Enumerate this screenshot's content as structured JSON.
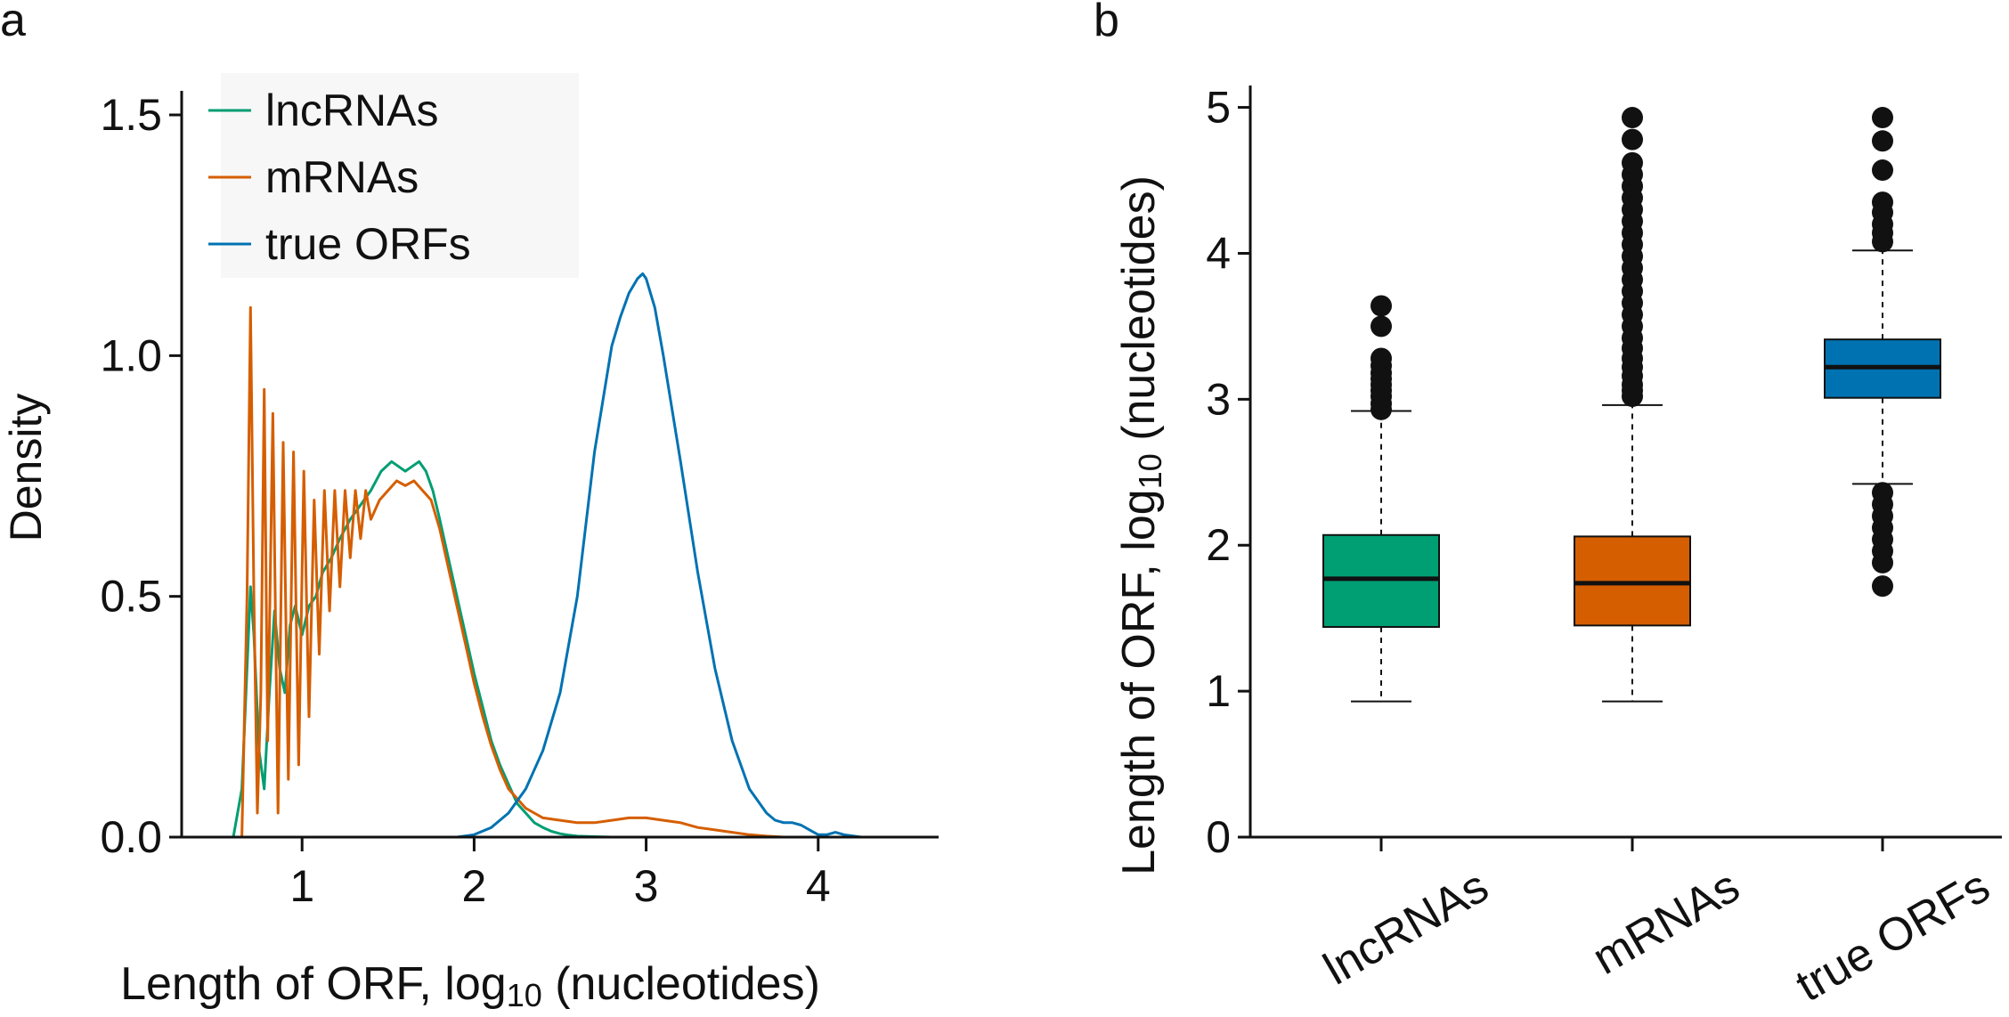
{
  "panels": {
    "a_label": "a",
    "b_label": "b"
  },
  "colors": {
    "lncRNAs": "#009e73",
    "mRNAs": "#d55e00",
    "true_ORFs": "#0072b2"
  },
  "chart_data": [
    {
      "panel": "a",
      "type": "line",
      "title": "",
      "xlabel": "Length of ORF, log10 (nucleotides)",
      "xlabel_parts": {
        "pre": "Length of ORF, log",
        "sub": "10",
        "post": " (nucleotides)"
      },
      "ylabel": "Density",
      "xlim": [
        0.3,
        4.7
      ],
      "ylim": [
        0,
        1.55
      ],
      "xticks": [
        1,
        2,
        3,
        4
      ],
      "xtick_labels": [
        "1",
        "2",
        "3",
        "4"
      ],
      "yticks": [
        0,
        0.5,
        1,
        1.5
      ],
      "ytick_labels": [
        "0.0",
        "0.5",
        "1.0",
        "1.5"
      ],
      "legend": {
        "placement": "top-left",
        "entries": [
          "lncRNAs",
          "mRNAs",
          "true ORFs"
        ]
      },
      "series": [
        {
          "name": "lncRNAs",
          "color": "#009e73",
          "x": [
            0.6,
            0.65,
            0.68,
            0.7,
            0.72,
            0.75,
            0.78,
            0.81,
            0.84,
            0.87,
            0.9,
            0.93,
            0.96,
            1.0,
            1.04,
            1.08,
            1.12,
            1.17,
            1.22,
            1.28,
            1.34,
            1.4,
            1.46,
            1.52,
            1.56,
            1.6,
            1.64,
            1.68,
            1.72,
            1.76,
            1.8,
            1.85,
            1.9,
            1.95,
            2.0,
            2.05,
            2.1,
            2.15,
            2.2,
            2.25,
            2.3,
            2.35,
            2.4,
            2.45,
            2.5,
            2.55,
            2.6,
            2.7,
            2.8
          ],
          "y": [
            0.0,
            0.1,
            0.35,
            0.52,
            0.42,
            0.18,
            0.1,
            0.3,
            0.47,
            0.35,
            0.3,
            0.44,
            0.48,
            0.42,
            0.48,
            0.5,
            0.55,
            0.58,
            0.62,
            0.66,
            0.69,
            0.72,
            0.76,
            0.78,
            0.77,
            0.76,
            0.77,
            0.78,
            0.76,
            0.72,
            0.66,
            0.58,
            0.5,
            0.42,
            0.34,
            0.27,
            0.2,
            0.15,
            0.11,
            0.07,
            0.05,
            0.03,
            0.02,
            0.012,
            0.007,
            0.004,
            0.002,
            0.001,
            0.0
          ]
        },
        {
          "name": "mRNAs",
          "color": "#d55e00",
          "x": [
            0.65,
            0.68,
            0.7,
            0.72,
            0.74,
            0.76,
            0.78,
            0.8,
            0.83,
            0.86,
            0.89,
            0.92,
            0.95,
            0.98,
            1.01,
            1.04,
            1.07,
            1.1,
            1.13,
            1.16,
            1.19,
            1.22,
            1.25,
            1.28,
            1.31,
            1.34,
            1.37,
            1.4,
            1.45,
            1.5,
            1.55,
            1.6,
            1.65,
            1.7,
            1.75,
            1.8,
            1.85,
            1.9,
            1.95,
            2.0,
            2.05,
            2.1,
            2.15,
            2.2,
            2.25,
            2.3,
            2.35,
            2.4,
            2.5,
            2.6,
            2.7,
            2.8,
            2.9,
            3.0,
            3.1,
            3.2,
            3.3,
            3.4,
            3.5,
            3.6,
            3.7,
            3.8
          ],
          "y": [
            0.0,
            0.5,
            1.1,
            0.5,
            0.05,
            0.3,
            0.93,
            0.2,
            0.88,
            0.05,
            0.82,
            0.12,
            0.8,
            0.15,
            0.76,
            0.25,
            0.7,
            0.38,
            0.72,
            0.47,
            0.72,
            0.52,
            0.72,
            0.58,
            0.72,
            0.62,
            0.72,
            0.66,
            0.7,
            0.72,
            0.74,
            0.73,
            0.74,
            0.72,
            0.7,
            0.64,
            0.56,
            0.48,
            0.4,
            0.32,
            0.25,
            0.19,
            0.14,
            0.1,
            0.08,
            0.06,
            0.05,
            0.04,
            0.035,
            0.03,
            0.03,
            0.035,
            0.04,
            0.04,
            0.035,
            0.03,
            0.02,
            0.015,
            0.01,
            0.005,
            0.002,
            0.0
          ]
        },
        {
          "name": "true ORFs",
          "color": "#0072b2",
          "x": [
            1.9,
            2.0,
            2.1,
            2.2,
            2.3,
            2.4,
            2.5,
            2.6,
            2.7,
            2.8,
            2.85,
            2.9,
            2.95,
            2.98,
            3.0,
            3.05,
            3.1,
            3.2,
            3.3,
            3.4,
            3.5,
            3.6,
            3.7,
            3.75,
            3.8,
            3.85,
            3.9,
            3.95,
            4.0,
            4.05,
            4.1,
            4.15,
            4.25
          ],
          "y": [
            0.0,
            0.005,
            0.02,
            0.05,
            0.1,
            0.18,
            0.3,
            0.5,
            0.8,
            1.02,
            1.08,
            1.13,
            1.16,
            1.17,
            1.16,
            1.1,
            1.0,
            0.78,
            0.55,
            0.35,
            0.2,
            0.1,
            0.05,
            0.035,
            0.03,
            0.03,
            0.025,
            0.015,
            0.005,
            0.005,
            0.01,
            0.005,
            0.0
          ]
        }
      ]
    },
    {
      "panel": "b",
      "type": "box",
      "title": "",
      "xlabel": "",
      "ylabel": "Length of ORF, log10 (nucleotides)",
      "ylabel_parts": {
        "pre": "Length of ORF, log",
        "sub": "10",
        "post": " (nucleotides)"
      },
      "ylim": [
        0,
        5.15
      ],
      "yticks": [
        0,
        1,
        2,
        3,
        4,
        5
      ],
      "ytick_labels": [
        "0",
        "1",
        "2",
        "3",
        "4",
        "5"
      ],
      "categories": [
        "lncRNAs",
        "mRNAs",
        "true ORFs"
      ],
      "boxes": [
        {
          "name": "lncRNAs",
          "color": "#009e73",
          "whisker_low": 0.93,
          "q1": 1.44,
          "median": 1.77,
          "q3": 2.07,
          "whisker_high": 2.92,
          "outliers": [
            2.93,
            2.97,
            3.02,
            3.06,
            3.1,
            3.14,
            3.18,
            3.23,
            3.28,
            3.5,
            3.64
          ]
        },
        {
          "name": "mRNAs",
          "color": "#d55e00",
          "whisker_low": 0.93,
          "q1": 1.45,
          "median": 1.74,
          "q3": 2.06,
          "whisker_high": 2.96,
          "outliers": [
            3.02,
            3.06,
            3.1,
            3.16,
            3.22,
            3.28,
            3.35,
            3.42,
            3.5,
            3.58,
            3.66,
            3.74,
            3.82,
            3.9,
            3.98,
            4.06,
            4.14,
            4.22,
            4.3,
            4.38,
            4.46,
            4.54,
            4.62,
            4.78,
            4.93
          ]
        },
        {
          "name": "true ORFs",
          "color": "#0072b2",
          "whisker_low": 2.42,
          "q1": 3.01,
          "median": 3.22,
          "q3": 3.41,
          "whisker_high": 4.02,
          "outliers": [
            1.72,
            1.88,
            1.96,
            2.04,
            2.12,
            2.2,
            2.28,
            2.36,
            4.08,
            4.14,
            4.2,
            4.28,
            4.35,
            4.57,
            4.77,
            4.93
          ]
        }
      ]
    }
  ]
}
